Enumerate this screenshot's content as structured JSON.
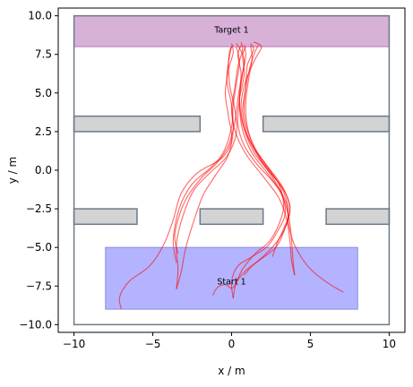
{
  "chart_data": {
    "type": "line",
    "title": "",
    "xlabel": "x / m",
    "ylabel": "y / m",
    "xlim": [
      -11,
      11
    ],
    "ylim": [
      -10.5,
      10.5
    ],
    "xticks": [
      -10,
      -5,
      0,
      5,
      10
    ],
    "yticks": [
      -10.0,
      -7.5,
      -5.0,
      -2.5,
      0.0,
      2.5,
      5.0,
      7.5,
      10.0
    ],
    "ytick_labels": [
      "−10.0",
      "−7.5",
      "−5.0",
      "−2.5",
      "0.0",
      "2.5",
      "5.0",
      "7.5",
      "10.0"
    ],
    "xtick_labels": [
      "−10",
      "−5",
      "0",
      "5",
      "10"
    ],
    "grid": false,
    "boundary": {
      "x": [
        -10,
        10
      ],
      "y": [
        -10,
        10
      ],
      "color": "#6c7a89"
    },
    "regions": [
      {
        "name": "Target 1",
        "x": [
          -10,
          10
        ],
        "y": [
          8,
          10
        ],
        "color": "#d8b1d9",
        "edge": "#b57fb8"
      },
      {
        "name": "Start 1",
        "x": [
          -8,
          8
        ],
        "y": [
          -9,
          -5
        ],
        "color": "#b3b3ff",
        "edge": "#8a8ae6"
      }
    ],
    "obstacles": [
      {
        "x": [
          -10,
          -2
        ],
        "y": [
          2.5,
          3.5
        ]
      },
      {
        "x": [
          2,
          10
        ],
        "y": [
          2.5,
          3.5
        ]
      },
      {
        "x": [
          -10,
          -6
        ],
        "y": [
          -3.5,
          -2.5
        ]
      },
      {
        "x": [
          -2,
          2
        ],
        "y": [
          -3.5,
          -2.5
        ]
      },
      {
        "x": [
          6,
          10
        ],
        "y": [
          -3.5,
          -2.5
        ]
      }
    ],
    "obstacle_color": "#d3d3d3",
    "obstacle_edge": "#6c7a89",
    "trajectory_color": "#ff0000",
    "trajectories": [
      [
        [
          -7,
          -9
        ],
        [
          -7.1,
          -8.2
        ],
        [
          -6.5,
          -7.2
        ],
        [
          -5.2,
          -6.2
        ],
        [
          -4.3,
          -4.8
        ],
        [
          -3.7,
          -3.2
        ],
        [
          -3.2,
          -1.5
        ],
        [
          -2.2,
          -0.2
        ],
        [
          -0.6,
          0.8
        ],
        [
          0.0,
          2.0
        ],
        [
          -0.2,
          3.5
        ],
        [
          -0.4,
          5.0
        ],
        [
          -0.2,
          6.5
        ],
        [
          0.1,
          7.6
        ],
        [
          0.0,
          8.2
        ]
      ],
      [
        [
          -3.5,
          -7.7
        ],
        [
          -3.4,
          -6.4
        ],
        [
          -3.5,
          -4.8
        ],
        [
          -3.1,
          -3.0
        ],
        [
          -2.4,
          -1.3
        ],
        [
          -1.4,
          -0.2
        ],
        [
          -0.3,
          0.9
        ],
        [
          0.3,
          2.4
        ],
        [
          0.2,
          4.0
        ],
        [
          -0.1,
          5.4
        ],
        [
          -0.2,
          6.8
        ],
        [
          -0.1,
          7.8
        ],
        [
          0.1,
          8.1
        ]
      ],
      [
        [
          -3.5,
          -7.7
        ],
        [
          -3.2,
          -6.6
        ],
        [
          -2.9,
          -5.0
        ],
        [
          -2.4,
          -3.3
        ],
        [
          -1.8,
          -1.6
        ],
        [
          -1.0,
          -0.3
        ],
        [
          -0.2,
          1.0
        ],
        [
          0.1,
          2.6
        ],
        [
          0.0,
          4.2
        ],
        [
          -0.3,
          5.8
        ],
        [
          -0.2,
          7.0
        ],
        [
          0.0,
          8.0
        ]
      ],
      [
        [
          -3.5,
          -6.0
        ],
        [
          -3.7,
          -4.5
        ],
        [
          -3.3,
          -2.4
        ],
        [
          -2.5,
          -0.9
        ],
        [
          -1.3,
          0.2
        ],
        [
          -0.5,
          1.2
        ],
        [
          0.0,
          2.8
        ],
        [
          0.1,
          4.2
        ],
        [
          0.3,
          5.6
        ],
        [
          0.5,
          7.0
        ],
        [
          0.3,
          8.0
        ]
      ],
      [
        [
          -3.4,
          -5.4
        ],
        [
          -3.6,
          -4.1
        ],
        [
          -3.0,
          -2.1
        ],
        [
          -2.0,
          -0.6
        ],
        [
          -0.9,
          0.5
        ],
        [
          -0.2,
          1.6
        ],
        [
          0.2,
          3.1
        ],
        [
          0.4,
          4.6
        ],
        [
          0.6,
          6.2
        ],
        [
          0.4,
          7.4
        ],
        [
          0.6,
          8.1
        ]
      ],
      [
        [
          0.1,
          -8.3
        ],
        [
          0.0,
          -7.2
        ],
        [
          0.4,
          -6.2
        ],
        [
          1.3,
          -5.6
        ],
        [
          2.3,
          -4.9
        ],
        [
          3.0,
          -3.8
        ],
        [
          3.4,
          -2.8
        ],
        [
          3.2,
          -1.6
        ],
        [
          2.5,
          -0.6
        ],
        [
          1.6,
          0.4
        ],
        [
          0.8,
          1.6
        ],
        [
          0.4,
          3.0
        ],
        [
          0.5,
          4.6
        ],
        [
          0.8,
          6.2
        ],
        [
          0.7,
          7.4
        ],
        [
          0.9,
          8.0
        ]
      ],
      [
        [
          0.1,
          -8.3
        ],
        [
          0.3,
          -7.3
        ],
        [
          0.9,
          -6.5
        ],
        [
          1.8,
          -5.8
        ],
        [
          2.8,
          -5.0
        ],
        [
          3.3,
          -4.0
        ],
        [
          3.6,
          -2.8
        ],
        [
          3.3,
          -1.4
        ],
        [
          2.6,
          -0.3
        ],
        [
          1.7,
          0.9
        ],
        [
          1.0,
          2.3
        ],
        [
          0.7,
          3.8
        ],
        [
          0.9,
          5.4
        ],
        [
          1.0,
          6.8
        ],
        [
          1.4,
          7.8
        ],
        [
          1.2,
          8.2
        ]
      ],
      [
        [
          0.8,
          -6.8
        ],
        [
          1.3,
          -6.2
        ],
        [
          2.1,
          -5.5
        ],
        [
          2.9,
          -4.6
        ],
        [
          3.5,
          -3.5
        ],
        [
          3.7,
          -2.3
        ],
        [
          3.2,
          -1.1
        ],
        [
          2.3,
          0.0
        ],
        [
          1.4,
          1.2
        ],
        [
          0.8,
          2.7
        ],
        [
          0.6,
          4.2
        ],
        [
          0.9,
          5.8
        ],
        [
          1.5,
          7.2
        ],
        [
          1.9,
          8.0
        ],
        [
          1.4,
          8.3
        ]
      ],
      [
        [
          4.0,
          -6.8
        ],
        [
          3.8,
          -5.8
        ],
        [
          3.7,
          -4.6
        ],
        [
          3.5,
          -3.2
        ],
        [
          3.0,
          -1.8
        ],
        [
          2.0,
          -0.4
        ],
        [
          1.0,
          0.9
        ],
        [
          0.3,
          2.3
        ],
        [
          0.0,
          3.8
        ],
        [
          0.2,
          5.3
        ],
        [
          0.4,
          6.7
        ],
        [
          0.7,
          7.8
        ],
        [
          0.6,
          8.3
        ]
      ],
      [
        [
          4.0,
          -6.8
        ],
        [
          3.9,
          -5.9
        ],
        [
          3.8,
          -4.4
        ],
        [
          3.6,
          -2.9
        ],
        [
          3.1,
          -1.4
        ],
        [
          2.2,
          -0.1
        ],
        [
          1.3,
          1.1
        ],
        [
          0.7,
          2.6
        ],
        [
          0.5,
          4.2
        ],
        [
          0.6,
          5.8
        ],
        [
          0.8,
          7.1
        ],
        [
          0.5,
          7.9
        ],
        [
          0.3,
          8.2
        ]
      ],
      [
        [
          2.6,
          -5.6
        ],
        [
          2.9,
          -4.7
        ],
        [
          3.3,
          -3.8
        ],
        [
          3.7,
          -2.6
        ],
        [
          3.3,
          -1.2
        ],
        [
          2.4,
          0.1
        ],
        [
          1.5,
          1.4
        ],
        [
          1.0,
          2.8
        ],
        [
          0.9,
          4.4
        ],
        [
          1.1,
          6.0
        ],
        [
          1.3,
          7.2
        ],
        [
          1.2,
          8.1
        ]
      ],
      [
        [
          7.1,
          -7.9
        ],
        [
          6.1,
          -7.3
        ],
        [
          5.1,
          -6.5
        ],
        [
          4.4,
          -5.6
        ],
        [
          3.9,
          -4.6
        ],
        [
          3.6,
          -3.4
        ],
        [
          3.5,
          -2.2
        ],
        [
          2.8,
          -0.8
        ],
        [
          1.9,
          0.6
        ],
        [
          1.2,
          2.0
        ],
        [
          0.8,
          3.6
        ],
        [
          0.9,
          5.3
        ],
        [
          1.2,
          6.8
        ],
        [
          1.5,
          7.7
        ],
        [
          1.7,
          8.1
        ]
      ],
      [
        [
          -1.2,
          -8.1
        ],
        [
          -0.9,
          -7.6
        ],
        [
          -0.4,
          -7.4
        ],
        [
          0.1,
          -7.6
        ],
        [
          0.7,
          -6.4
        ],
        [
          1.5,
          -5.4
        ],
        [
          2.4,
          -4.6
        ],
        [
          3.0,
          -3.5
        ],
        [
          3.3,
          -2.3
        ],
        [
          3.0,
          -0.9
        ],
        [
          2.2,
          0.3
        ],
        [
          1.3,
          1.6
        ],
        [
          0.7,
          3.0
        ],
        [
          0.5,
          4.6
        ],
        [
          0.7,
          6.2
        ],
        [
          0.9,
          7.4
        ],
        [
          0.8,
          8.1
        ]
      ]
    ]
  }
}
